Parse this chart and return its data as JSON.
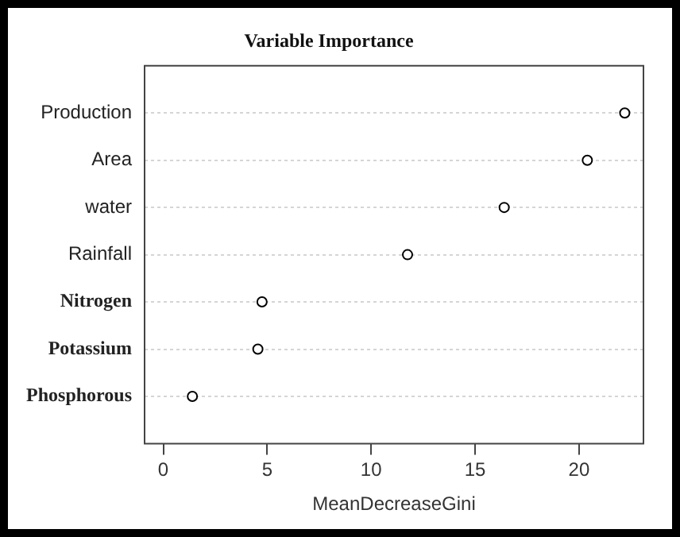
{
  "chart_data": {
    "type": "scatter",
    "title": "Variable Importance",
    "xlabel": "MeanDecreaseGini",
    "orientation": "horizontal",
    "categories": [
      "Production",
      "Area",
      "water",
      "Rainfall",
      "Nitrogen",
      "Potassium",
      "Phosphorous"
    ],
    "values": [
      22.2,
      20.4,
      16.4,
      11.75,
      4.75,
      4.55,
      1.4
    ],
    "color": "#000000",
    "marker": "circle",
    "grid": "y",
    "legend": false,
    "xlim": [
      -0.9,
      23.1
    ],
    "xticks": [
      0,
      5,
      10,
      15,
      20
    ]
  }
}
